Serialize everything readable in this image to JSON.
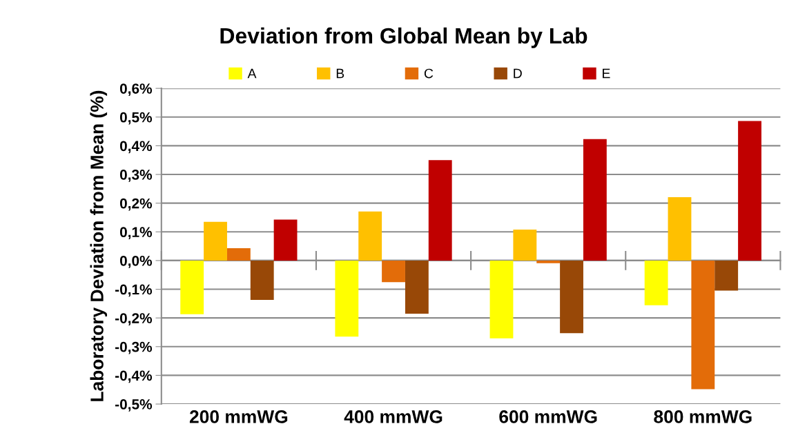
{
  "chart_data": {
    "type": "bar",
    "title": "Deviation from Global Mean by Lab",
    "ylabel": "Laboratory Deviation from Mean (%)",
    "categories": [
      "200 mmWG",
      "400 mmWG",
      "600 mmWG",
      "800 mmWG"
    ],
    "series": [
      {
        "name": "A",
        "color": "#ffff00",
        "values": [
          -0.187,
          -0.265,
          -0.271,
          -0.156
        ]
      },
      {
        "name": "B",
        "color": "#ffc000",
        "values": [
          0.135,
          0.171,
          0.108,
          0.221
        ]
      },
      {
        "name": "C",
        "color": "#e36c09",
        "values": [
          0.043,
          -0.075,
          -0.009,
          -0.448
        ]
      },
      {
        "name": "D",
        "color": "#984807",
        "values": [
          -0.137,
          -0.185,
          -0.253,
          -0.105
        ]
      },
      {
        "name": "E",
        "color": "#c00000",
        "values": [
          0.143,
          0.35,
          0.423,
          0.486
        ]
      }
    ],
    "ylim": [
      -0.5,
      0.6
    ],
    "yticks": [
      {
        "value": -0.5,
        "label": "-0,5%"
      },
      {
        "value": -0.4,
        "label": "-0,4%"
      },
      {
        "value": -0.3,
        "label": "-0,3%"
      },
      {
        "value": -0.2,
        "label": "-0,2%"
      },
      {
        "value": -0.1,
        "label": "-0,1%"
      },
      {
        "value": 0.0,
        "label": "0,0%"
      },
      {
        "value": 0.1,
        "label": "0,1%"
      },
      {
        "value": 0.2,
        "label": "0,2%"
      },
      {
        "value": 0.3,
        "label": "0,3%"
      },
      {
        "value": 0.4,
        "label": "0,4%"
      },
      {
        "value": 0.5,
        "label": "0,5%"
      },
      {
        "value": 0.6,
        "label": "0,6%"
      }
    ],
    "grid": "y",
    "legend": "top"
  }
}
